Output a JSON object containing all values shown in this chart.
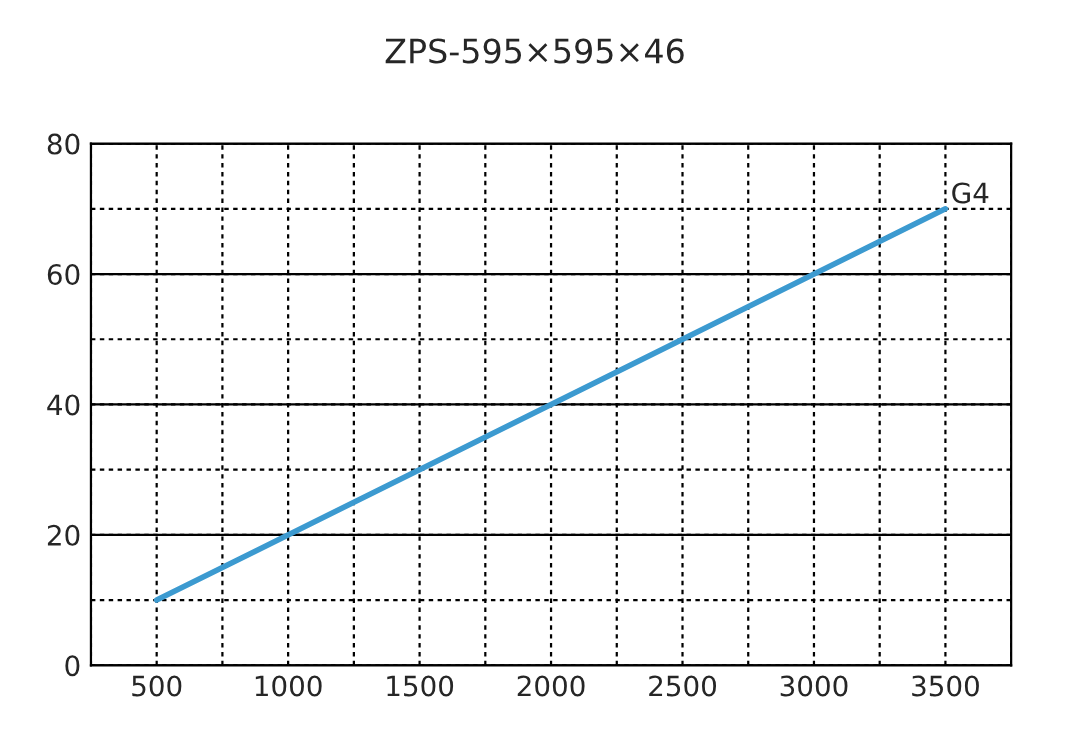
{
  "chart_data": {
    "type": "line",
    "title": "ZPS-595×595×46",
    "x": [
      500,
      3500
    ],
    "series": [
      {
        "name": "G4",
        "color": "#3c9ad0",
        "values": [
          10,
          70
        ]
      }
    ],
    "xlim": [
      250,
      3750
    ],
    "ylim": [
      0,
      80
    ],
    "xticks": [
      {
        "value": 250,
        "label": null
      },
      500,
      {
        "value": 750,
        "label": null
      },
      1000,
      {
        "value": 1250,
        "label": null
      },
      1500,
      {
        "value": 1750,
        "label": null
      },
      2000,
      {
        "value": 2250,
        "label": null
      },
      2500,
      {
        "value": 2750,
        "label": null
      },
      3000,
      {
        "value": 3250,
        "label": null
      },
      3500,
      {
        "value": 3750,
        "label": null
      }
    ],
    "yticks": [
      0,
      {
        "value": 10,
        "label": null
      },
      20,
      {
        "value": 30,
        "label": null
      },
      40,
      {
        "value": 50,
        "label": null
      },
      60,
      {
        "value": 70,
        "label": null
      },
      80
    ],
    "grid": true,
    "legend": false,
    "marker": "none",
    "line_style": "solid"
  }
}
